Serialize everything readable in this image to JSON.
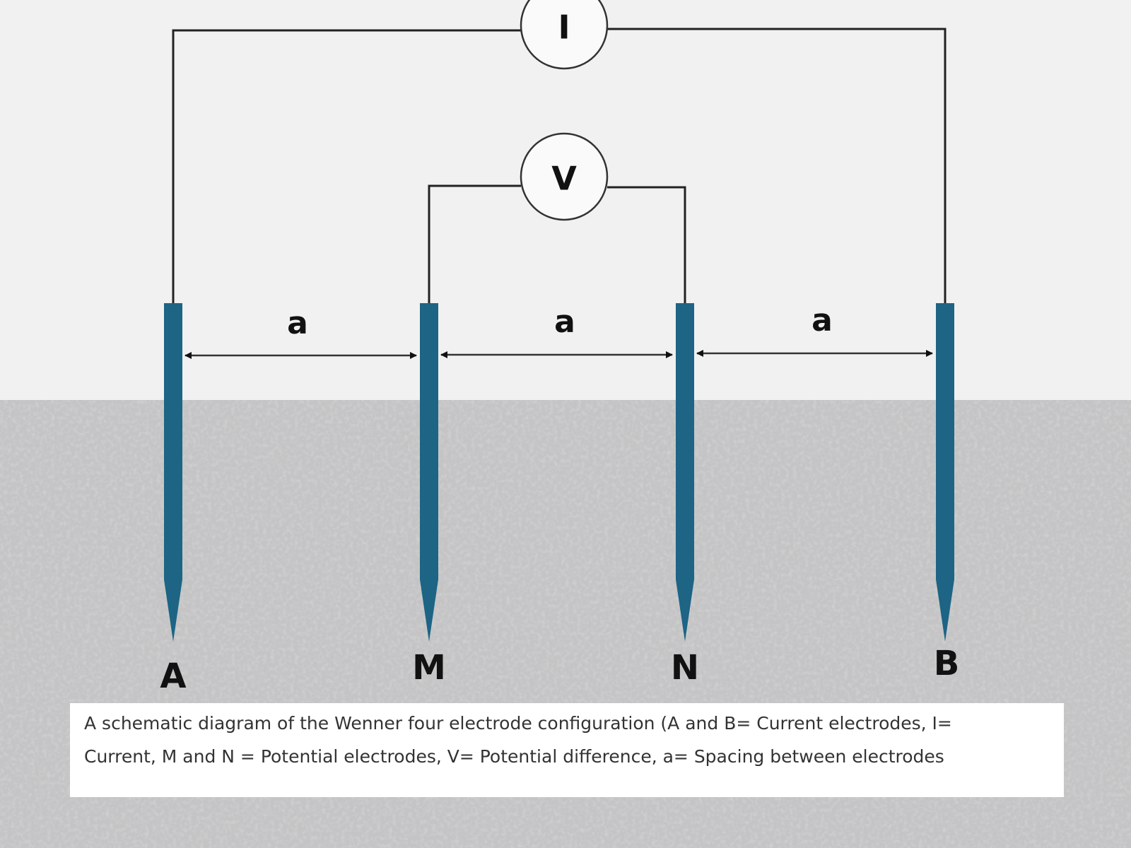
{
  "meters": {
    "current": "I",
    "voltage": "V"
  },
  "spacings": [
    "a",
    "a",
    "a"
  ],
  "electrodes": [
    "A",
    "M",
    "N",
    "B"
  ],
  "caption": {
    "lines": [
      "A schematic diagram of the Wenner four electrode configuration (A and B= Current electrodes, I=",
      "Current, M and N = Potential electrodes, V= Potential difference, a= Spacing between electrodes"
    ]
  }
}
